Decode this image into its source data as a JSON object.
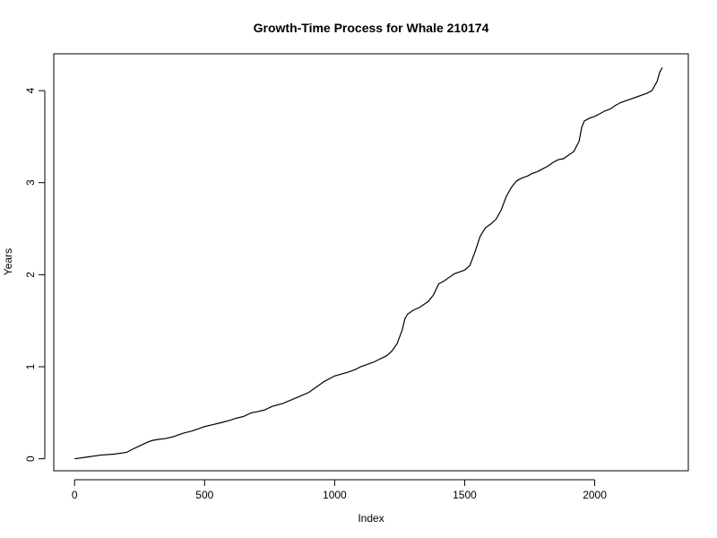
{
  "chart_data": {
    "type": "line",
    "title": "Growth-Time Process for Whale 210174",
    "xlabel": "Index",
    "ylabel": "Years",
    "xlim": [
      -80,
      2360
    ],
    "ylim": [
      -0.13,
      4.4
    ],
    "x_ticks": [
      0,
      500,
      1000,
      1500,
      2000
    ],
    "y_ticks": [
      0,
      1,
      2,
      3,
      4
    ],
    "grid": false,
    "series": [
      {
        "color": "#000000",
        "x": [
          0,
          50,
          100,
          150,
          200,
          220,
          250,
          280,
          300,
          320,
          350,
          380,
          400,
          420,
          450,
          480,
          500,
          530,
          560,
          600,
          620,
          650,
          680,
          700,
          730,
          760,
          800,
          850,
          900,
          920,
          940,
          960,
          1000,
          1050,
          1080,
          1100,
          1150,
          1200,
          1220,
          1240,
          1260,
          1270,
          1280,
          1300,
          1330,
          1360,
          1380,
          1400,
          1420,
          1440,
          1460,
          1480,
          1500,
          1520,
          1540,
          1560,
          1580,
          1600,
          1620,
          1640,
          1660,
          1680,
          1700,
          1720,
          1740,
          1760,
          1780,
          1800,
          1820,
          1840,
          1860,
          1880,
          1900,
          1920,
          1940,
          1950,
          1960,
          1980,
          2000,
          2020,
          2040,
          2060,
          2080,
          2100,
          2120,
          2140,
          2160,
          2180,
          2200,
          2220,
          2240,
          2250,
          2260
        ],
        "y": [
          0.0,
          0.02,
          0.04,
          0.05,
          0.07,
          0.1,
          0.14,
          0.18,
          0.2,
          0.21,
          0.22,
          0.24,
          0.26,
          0.28,
          0.3,
          0.33,
          0.35,
          0.37,
          0.39,
          0.42,
          0.44,
          0.46,
          0.5,
          0.51,
          0.53,
          0.57,
          0.6,
          0.66,
          0.72,
          0.76,
          0.8,
          0.84,
          0.9,
          0.94,
          0.97,
          1.0,
          1.05,
          1.12,
          1.17,
          1.25,
          1.4,
          1.52,
          1.57,
          1.61,
          1.65,
          1.71,
          1.78,
          1.9,
          1.93,
          1.97,
          2.01,
          2.03,
          2.05,
          2.1,
          2.25,
          2.42,
          2.51,
          2.55,
          2.6,
          2.7,
          2.85,
          2.95,
          3.02,
          3.05,
          3.07,
          3.1,
          3.12,
          3.15,
          3.18,
          3.22,
          3.25,
          3.26,
          3.3,
          3.34,
          3.45,
          3.6,
          3.67,
          3.7,
          3.72,
          3.75,
          3.78,
          3.8,
          3.84,
          3.87,
          3.89,
          3.91,
          3.93,
          3.95,
          3.97,
          4.0,
          4.1,
          4.2,
          4.25
        ]
      }
    ]
  }
}
